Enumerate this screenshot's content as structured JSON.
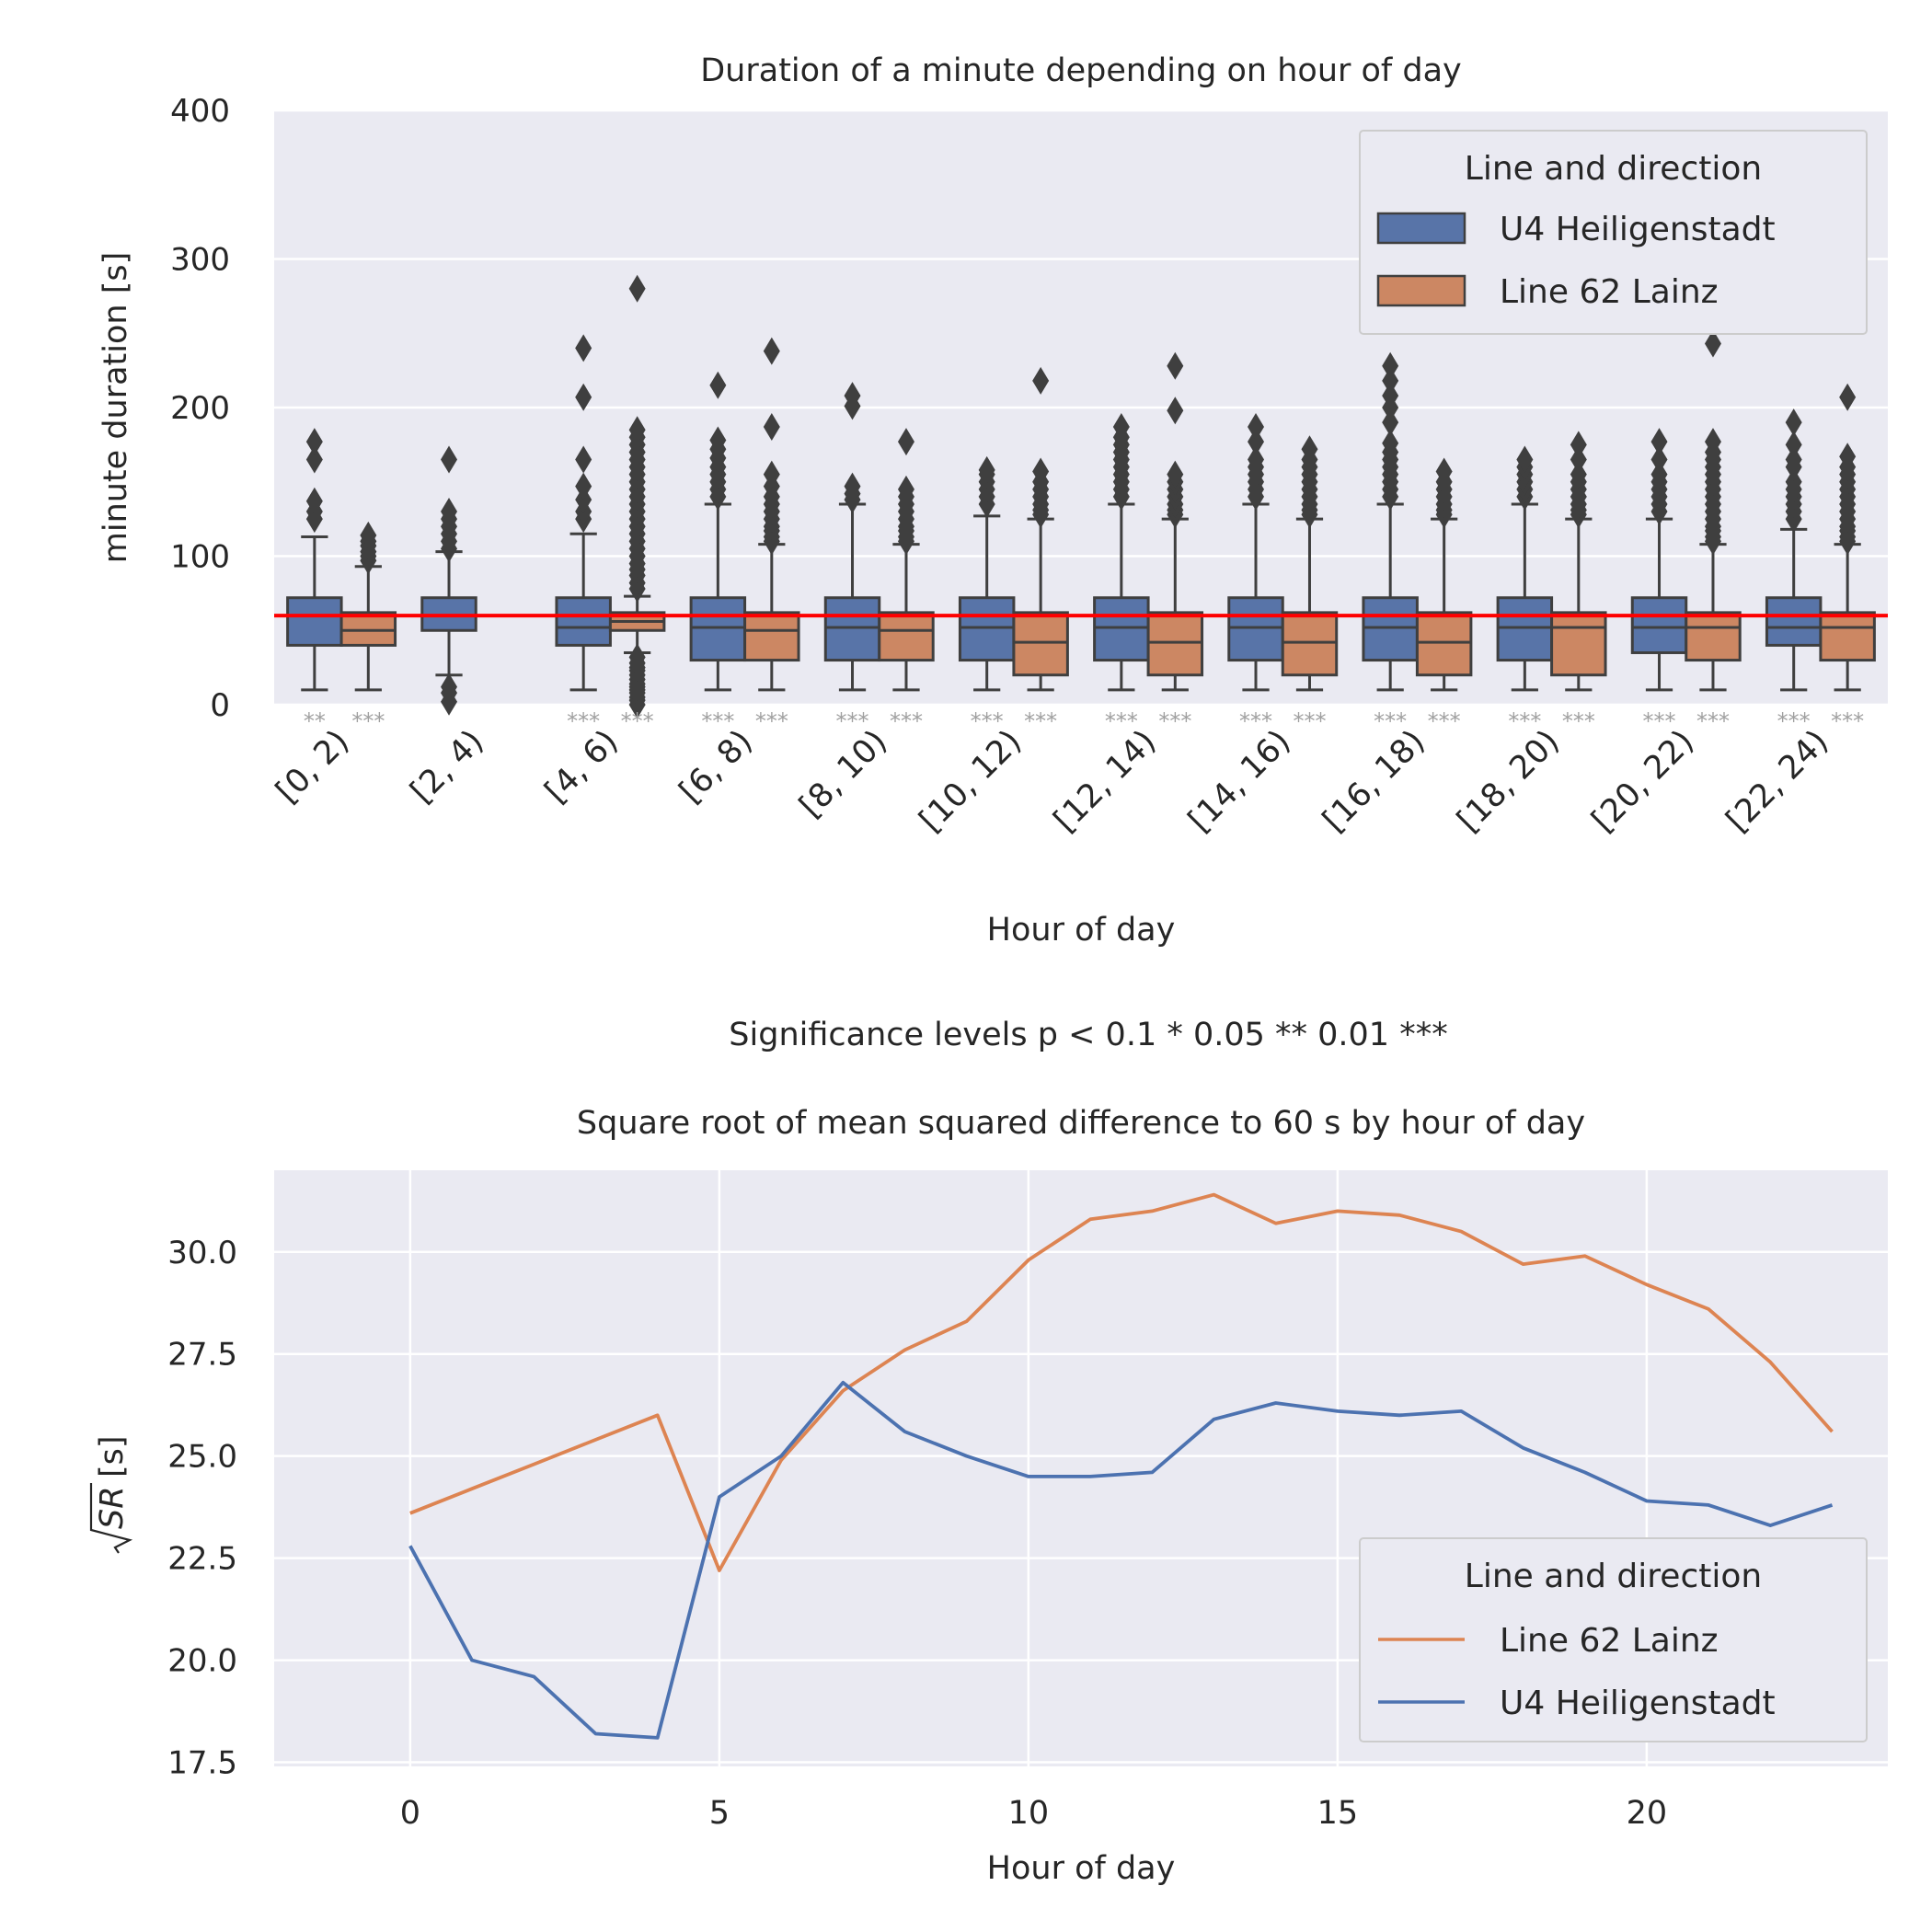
{
  "chart_data": [
    {
      "type": "box",
      "title": "Duration of a minute depending on hour of day",
      "xlabel": "Hour of day",
      "ylabel": "minute duration [s]",
      "ylim": [
        0,
        400
      ],
      "yticks": [
        0,
        100,
        200,
        300,
        400
      ],
      "grid": true,
      "reference_line": {
        "y": 60,
        "color": "#ff0000"
      },
      "legend": {
        "title": "Line and direction",
        "placement": "top-right"
      },
      "categories": [
        "[0, 2)",
        "[2, 4)",
        "[4, 6)",
        "[6, 8)",
        "[8, 10)",
        "[10, 12)",
        "[12, 14)",
        "[14, 16)",
        "[16, 18)",
        "[18, 20)",
        "[20, 22)",
        "[22, 24)"
      ],
      "series": [
        {
          "name": "U4 Heiligenstadt",
          "color": "#5874a8",
          "boxes": [
            {
              "whislo": 10,
              "q1": 40,
              "med": 60,
              "q3": 72,
              "whishi": 113,
              "fliers": [
                125,
                130,
                137,
                165,
                177
              ],
              "sig": "**"
            },
            {
              "whislo": 20,
              "q1": 50,
              "med": 60,
              "q3": 72,
              "whishi": 103,
              "fliers": [
                2,
                8,
                12,
                105,
                110,
                115,
                120,
                125,
                130,
                165
              ],
              "sig": ""
            },
            {
              "whislo": 10,
              "q1": 40,
              "med": 52,
              "q3": 72,
              "whishi": 115,
              "fliers": [
                125,
                130,
                138,
                147,
                165,
                207,
                240
              ],
              "sig": "***"
            },
            {
              "whislo": 10,
              "q1": 30,
              "med": 52,
              "q3": 72,
              "whishi": 135,
              "fliers": [
                140,
                145,
                150,
                155,
                160,
                166,
                172,
                178,
                215
              ],
              "sig": "***"
            },
            {
              "whislo": 10,
              "q1": 30,
              "med": 52,
              "q3": 72,
              "whishi": 135,
              "fliers": [
                138,
                142,
                147,
                201,
                208
              ],
              "sig": "***"
            },
            {
              "whislo": 10,
              "q1": 30,
              "med": 52,
              "q3": 72,
              "whishi": 127,
              "fliers": [
                135,
                140,
                145,
                150,
                155,
                158
              ],
              "sig": "***"
            },
            {
              "whislo": 10,
              "q1": 30,
              "med": 52,
              "q3": 72,
              "whishi": 135,
              "fliers": [
                140,
                145,
                150,
                155,
                160,
                165,
                170,
                175,
                180,
                187
              ],
              "sig": "***"
            },
            {
              "whislo": 10,
              "q1": 30,
              "med": 52,
              "q3": 72,
              "whishi": 135,
              "fliers": [
                140,
                145,
                150,
                155,
                160,
                165,
                177,
                187
              ],
              "sig": "***"
            },
            {
              "whislo": 10,
              "q1": 30,
              "med": 52,
              "q3": 72,
              "whishi": 135,
              "fliers": [
                140,
                145,
                150,
                155,
                160,
                165,
                170,
                176,
                190,
                200,
                208,
                218,
                228
              ],
              "sig": "***"
            },
            {
              "whislo": 10,
              "q1": 30,
              "med": 52,
              "q3": 72,
              "whishi": 135,
              "fliers": [
                140,
                145,
                150,
                155,
                160,
                165
              ],
              "sig": "***"
            },
            {
              "whislo": 10,
              "q1": 35,
              "med": 52,
              "q3": 72,
              "whishi": 125,
              "fliers": [
                130,
                135,
                140,
                145,
                150,
                155,
                165,
                177
              ],
              "sig": "***"
            },
            {
              "whislo": 10,
              "q1": 40,
              "med": 52,
              "q3": 72,
              "whishi": 118,
              "fliers": [
                125,
                130,
                135,
                140,
                145,
                150,
                160,
                165,
                175,
                190
              ],
              "sig": "***"
            }
          ]
        },
        {
          "name": "Line 62 Lainz",
          "color": "#cc8763",
          "boxes": [
            {
              "whislo": 10,
              "q1": 40,
              "med": 50,
              "q3": 62,
              "whishi": 93,
              "fliers": [
                97,
                100,
                103,
                107,
                110,
                114
              ],
              "sig": "***"
            },
            null,
            {
              "whislo": 35,
              "q1": 50,
              "med": 56,
              "q3": 62,
              "whishi": 73,
              "fliers": [
                0,
                3,
                5,
                8,
                10,
                12,
                14,
                17,
                20,
                23,
                25,
                28,
                32,
                78,
                82,
                87,
                91,
                95,
                100,
                105,
                110,
                115,
                120,
                125,
                130,
                135,
                140,
                145,
                150,
                155,
                160,
                165,
                170,
                175,
                180,
                185,
                280
              ],
              "sig": "***"
            },
            {
              "whislo": 10,
              "q1": 30,
              "med": 50,
              "q3": 62,
              "whishi": 108,
              "fliers": [
                110,
                113,
                117,
                120,
                125,
                130,
                135,
                140,
                147,
                155,
                187,
                238
              ],
              "sig": "***"
            },
            {
              "whislo": 10,
              "q1": 30,
              "med": 50,
              "q3": 62,
              "whishi": 108,
              "fliers": [
                110,
                113,
                117,
                120,
                125,
                130,
                135,
                140,
                145,
                177
              ],
              "sig": "***"
            },
            {
              "whislo": 10,
              "q1": 20,
              "med": 42,
              "q3": 62,
              "whishi": 125,
              "fliers": [
                128,
                131,
                135,
                140,
                145,
                150,
                157,
                218
              ],
              "sig": "***"
            },
            {
              "whislo": 10,
              "q1": 20,
              "med": 42,
              "q3": 62,
              "whishi": 125,
              "fliers": [
                128,
                131,
                135,
                140,
                145,
                150,
                155,
                198,
                228
              ],
              "sig": "***"
            },
            {
              "whislo": 10,
              "q1": 20,
              "med": 42,
              "q3": 62,
              "whishi": 125,
              "fliers": [
                128,
                131,
                135,
                140,
                145,
                150,
                155,
                160,
                165,
                172
              ],
              "sig": "***"
            },
            {
              "whislo": 10,
              "q1": 20,
              "med": 42,
              "q3": 62,
              "whishi": 125,
              "fliers": [
                128,
                131,
                135,
                140,
                145,
                150,
                157
              ],
              "sig": "***"
            },
            {
              "whislo": 10,
              "q1": 20,
              "med": 52,
              "q3": 62,
              "whishi": 125,
              "fliers": [
                128,
                131,
                135,
                140,
                145,
                150,
                155,
                165,
                175
              ],
              "sig": "***"
            },
            {
              "whislo": 10,
              "q1": 30,
              "med": 52,
              "q3": 62,
              "whishi": 108,
              "fliers": [
                110,
                113,
                117,
                120,
                125,
                130,
                135,
                140,
                145,
                150,
                155,
                160,
                165,
                170,
                177,
                243
              ],
              "sig": "***"
            },
            {
              "whislo": 10,
              "q1": 30,
              "med": 52,
              "q3": 62,
              "whishi": 108,
              "fliers": [
                110,
                113,
                117,
                120,
                125,
                130,
                135,
                140,
                145,
                150,
                155,
                160,
                167,
                207
              ],
              "sig": "***"
            }
          ]
        }
      ]
    },
    {
      "type": "line",
      "title": "Square root of mean squared difference to 60 s by hour of day",
      "xlabel": "Hour of day",
      "ylabel_radicand": "SR",
      "ylabel_rest": "[s]",
      "xlim": [
        -2.2,
        23.9
      ],
      "ylim": [
        17.4,
        32.0
      ],
      "xticks": [
        0,
        5,
        10,
        15,
        20
      ],
      "yticks": [
        17.5,
        20.0,
        22.5,
        25.0,
        27.5,
        30.0
      ],
      "grid": true,
      "legend": {
        "title": "Line and direction",
        "placement": "bottom-right"
      },
      "x": [
        0,
        1,
        2,
        3,
        4,
        5,
        6,
        7,
        8,
        9,
        10,
        11,
        12,
        13,
        14,
        15,
        16,
        17,
        18,
        19,
        20,
        21,
        22,
        23
      ],
      "series": [
        {
          "name": "Line 62 Lainz",
          "color": "#dd8452",
          "values": [
            23.6,
            24.2,
            24.8,
            25.4,
            26.0,
            22.2,
            24.9,
            26.6,
            27.6,
            28.3,
            29.8,
            30.8,
            31.0,
            31.4,
            30.7,
            31.0,
            30.9,
            30.5,
            29.7,
            29.9,
            29.2,
            28.6,
            27.3,
            25.6
          ]
        },
        {
          "name": "U4 Heiligenstadt",
          "color": "#4c72b0",
          "values": [
            22.8,
            20.0,
            19.6,
            18.2,
            18.1,
            24.0,
            25.0,
            26.8,
            25.6,
            25.0,
            24.5,
            24.5,
            24.6,
            25.9,
            26.3,
            26.1,
            26.0,
            26.1,
            25.2,
            24.6,
            23.9,
            23.8,
            23.3,
            23.8
          ]
        }
      ]
    }
  ],
  "footnote": "Significance levels p < 0.1 * 0.05 ** 0.01 ***"
}
